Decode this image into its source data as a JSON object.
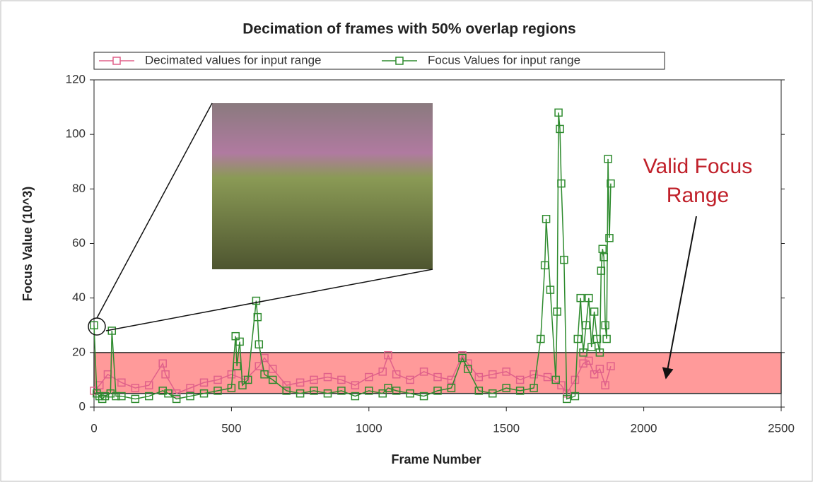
{
  "chart_data": {
    "type": "line",
    "title": "Decimation of frames with 50% overlap regions",
    "x_label": "Frame Number",
    "y_label": "Focus Value (10^3)",
    "annotation": [
      "Valid Focus",
      "Range"
    ],
    "valid_range": [
      5,
      20
    ],
    "valid_range_color": "#ff9a9a",
    "xlim": [
      0,
      2500
    ],
    "xticks": [
      0,
      500,
      1000,
      1500,
      2000,
      2500
    ],
    "ylim": [
      0,
      120
    ],
    "yticks": [
      0,
      20,
      40,
      60,
      80,
      100,
      120
    ],
    "legend": "top",
    "series": [
      {
        "name": "Decimated values for input range",
        "color": "#e0608a",
        "x": [
          0,
          20,
          50,
          100,
          150,
          200,
          250,
          260,
          300,
          350,
          400,
          450,
          500,
          550,
          600,
          620,
          650,
          700,
          750,
          800,
          850,
          900,
          950,
          1000,
          1050,
          1070,
          1100,
          1150,
          1200,
          1250,
          1300,
          1340,
          1360,
          1400,
          1450,
          1500,
          1550,
          1600,
          1650,
          1700,
          1720,
          1750,
          1780,
          1800,
          1820,
          1840,
          1860,
          1880
        ],
        "values": [
          6,
          8,
          12,
          9,
          7,
          8,
          16,
          12,
          5,
          7,
          9,
          10,
          12,
          10,
          15,
          18,
          14,
          8,
          9,
          10,
          11,
          10,
          8,
          11,
          13,
          19,
          12,
          10,
          13,
          11,
          10,
          19,
          16,
          11,
          12,
          13,
          10,
          12,
          11,
          8,
          5,
          10,
          16,
          17,
          12,
          14,
          8,
          15
        ]
      },
      {
        "name": "Focus Values for input range",
        "color": "#2e8b2e",
        "x": [
          0,
          10,
          20,
          30,
          40,
          60,
          65,
          80,
          100,
          150,
          200,
          250,
          270,
          300,
          350,
          400,
          450,
          500,
          515,
          520,
          530,
          540,
          560,
          590,
          595,
          600,
          620,
          650,
          700,
          750,
          800,
          850,
          900,
          950,
          1000,
          1050,
          1070,
          1100,
          1150,
          1200,
          1250,
          1300,
          1340,
          1360,
          1400,
          1450,
          1500,
          1550,
          1600,
          1625,
          1640,
          1645,
          1660,
          1680,
          1685,
          1690,
          1695,
          1700,
          1710,
          1720,
          1750,
          1760,
          1770,
          1780,
          1790,
          1800,
          1810,
          1820,
          1830,
          1840,
          1845,
          1850,
          1855,
          1860,
          1865,
          1870,
          1875,
          1880
        ],
        "values": [
          30,
          5,
          4,
          3,
          4,
          5,
          28,
          4,
          4,
          3,
          4,
          6,
          5,
          3,
          4,
          5,
          6,
          7,
          26,
          15,
          24,
          8,
          10,
          39,
          33,
          23,
          12,
          10,
          6,
          5,
          6,
          5,
          6,
          4,
          6,
          5,
          7,
          6,
          5,
          4,
          6,
          7,
          18,
          14,
          6,
          5,
          7,
          6,
          7,
          25,
          52,
          69,
          43,
          10,
          35,
          108,
          102,
          82,
          54,
          3,
          4,
          25,
          40,
          20,
          30,
          40,
          22,
          35,
          25,
          20,
          50,
          58,
          55,
          30,
          25,
          91,
          62,
          82
        ]
      }
    ]
  }
}
